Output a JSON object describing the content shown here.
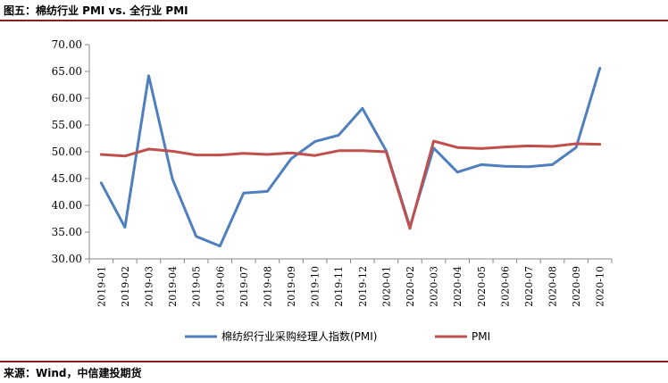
{
  "header": {
    "title": "图五：棉纺行业 PMI vs. 全行业 PMI"
  },
  "footer": {
    "source": "来源：Wind，中信建投期货"
  },
  "colors": {
    "series1": "#4f7fbd",
    "series2": "#c0504d",
    "rule": "#8b1e1e",
    "axis": "#888888"
  },
  "chart_data": {
    "type": "line",
    "title": "",
    "xlabel": "",
    "ylabel": "",
    "ylim": [
      30,
      70
    ],
    "yticks": [
      "30.00",
      "35.00",
      "40.00",
      "45.00",
      "50.00",
      "55.00",
      "60.00",
      "65.00",
      "70.00"
    ],
    "grid": false,
    "legend_position": "bottom",
    "categories": [
      "2019-01",
      "2019-02",
      "2019-03",
      "2019-04",
      "2019-05",
      "2019-06",
      "2019-07",
      "2019-08",
      "2019-09",
      "2019-10",
      "2019-11",
      "2019-12",
      "2020-01",
      "2020-02",
      "2020-03",
      "2020-04",
      "2020-05",
      "2020-06",
      "2020-07",
      "2020-08",
      "2020-09",
      "2020-10"
    ],
    "series": [
      {
        "name": "棉纺织行业采购经理人指数(PMI)",
        "values": [
          44.2,
          35.9,
          64.2,
          44.9,
          34.2,
          32.4,
          42.3,
          42.6,
          48.7,
          51.9,
          53.1,
          58.1,
          50.2,
          36.0,
          50.7,
          46.2,
          47.6,
          47.3,
          47.2,
          47.6,
          50.8,
          65.6
        ]
      },
      {
        "name": "PMI",
        "values": [
          49.5,
          49.2,
          50.5,
          50.1,
          49.4,
          49.4,
          49.7,
          49.5,
          49.8,
          49.3,
          50.2,
          50.2,
          50.0,
          35.7,
          52.0,
          50.8,
          50.6,
          50.9,
          51.1,
          51.0,
          51.5,
          51.4
        ]
      }
    ]
  }
}
